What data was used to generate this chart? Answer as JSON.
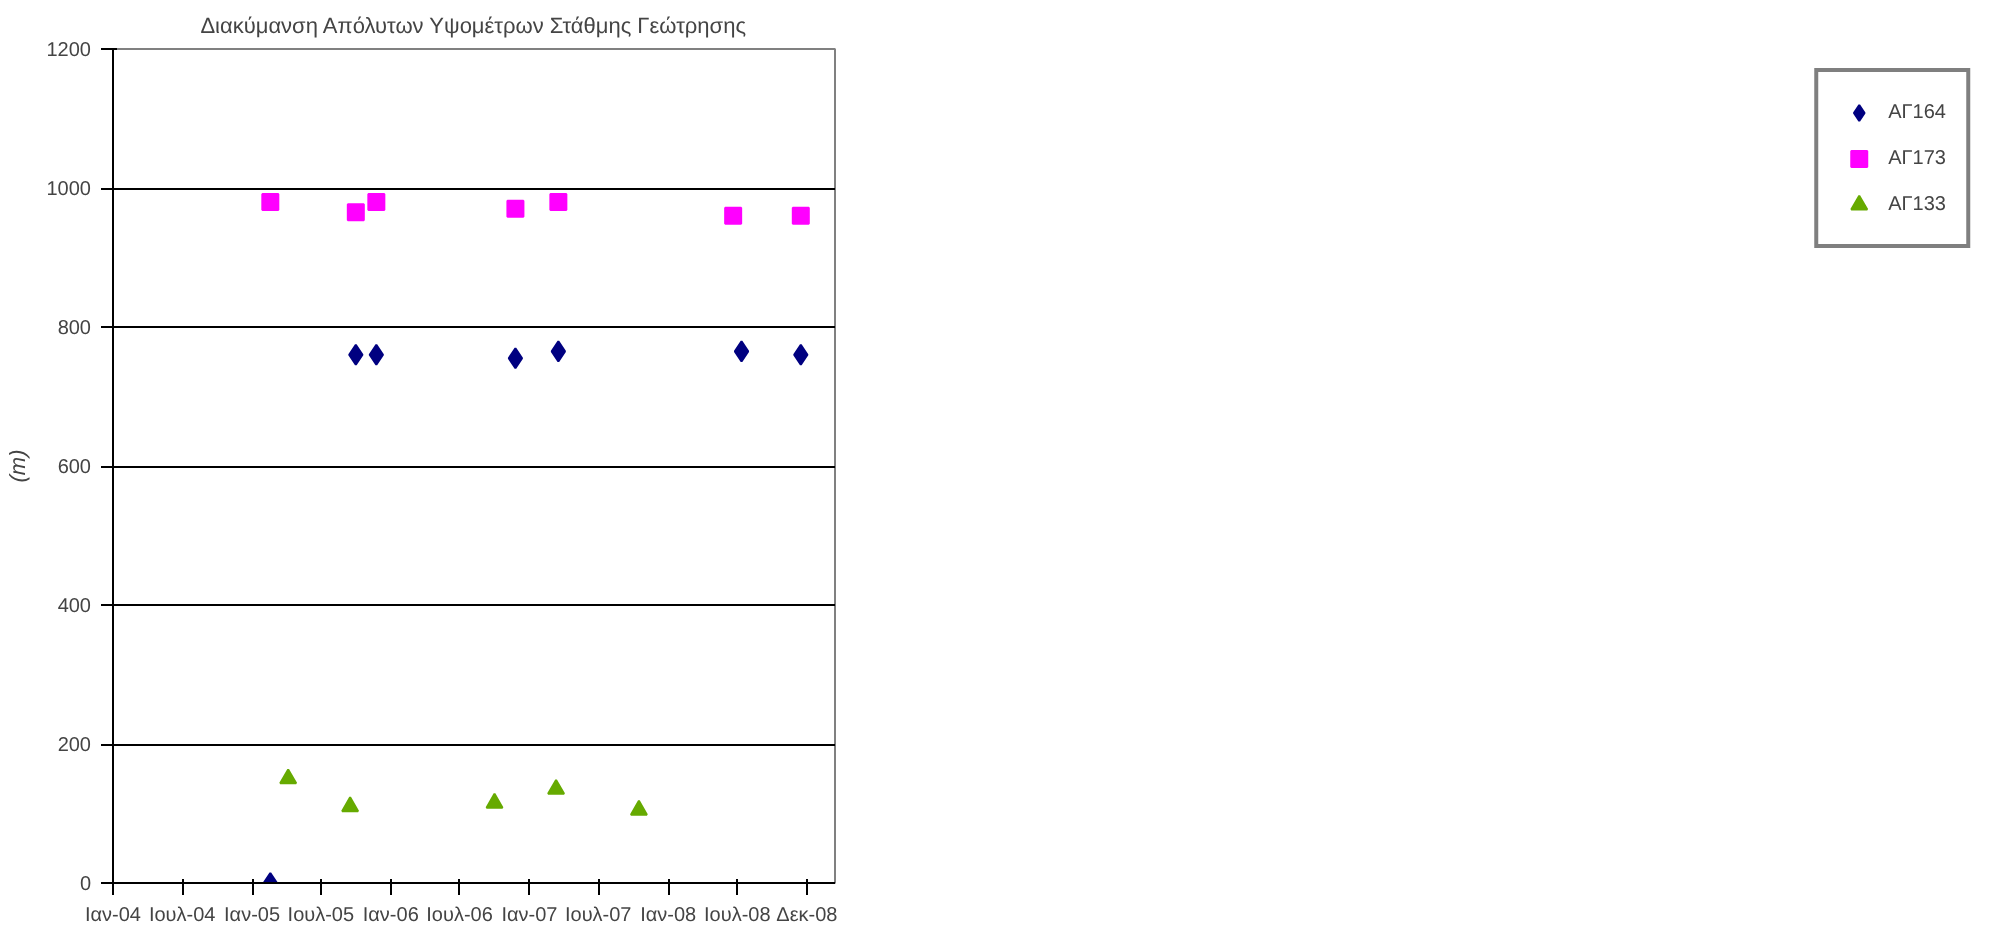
{
  "chart_data": {
    "type": "scatter",
    "title": "Διακύμανση Απόλυτων Υψομέτρων Στάθμης Γεώτρησης",
    "ylabel": "(m)",
    "xlim": [
      "2004-01-01",
      "2009-03-15"
    ],
    "ylim": [
      0,
      1200
    ],
    "yticks": [
      0,
      200,
      400,
      600,
      800,
      1000,
      1200
    ],
    "xticks": [
      {
        "value": "2004-01-01",
        "label": "Ιαν-04"
      },
      {
        "value": "2004-07-01",
        "label": "Ιουλ-04"
      },
      {
        "value": "2005-01-01",
        "label": "Ιαν-05"
      },
      {
        "value": "2005-07-01",
        "label": "Ιουλ-05"
      },
      {
        "value": "2006-01-01",
        "label": "Ιαν-06"
      },
      {
        "value": "2006-07-01",
        "label": "Ιουλ-06"
      },
      {
        "value": "2007-01-01",
        "label": "Ιαν-07"
      },
      {
        "value": "2007-07-01",
        "label": "Ιουλ-07"
      },
      {
        "value": "2008-01-01",
        "label": "Ιαν-08"
      },
      {
        "value": "2008-07-01",
        "label": "Ιουλ-08"
      },
      {
        "value": "2008-12-31",
        "label": "Δεκ-08"
      }
    ],
    "grid": "y",
    "legend": "right",
    "series": [
      {
        "name": "ΑΓ164",
        "color": "#000080",
        "marker": "diamond",
        "x": [
          "2005-02-18",
          "2005-10-01",
          "2005-11-24",
          "2006-11-25",
          "2007-03-18",
          "2008-07-12",
          "2008-12-15"
        ],
        "values": [
          0,
          760,
          760,
          755,
          765,
          765,
          760
        ]
      },
      {
        "name": "ΑΓ173",
        "color": "#ff00ff",
        "marker": "square",
        "x": [
          "2005-02-18",
          "2005-10-01",
          "2005-11-24",
          "2006-11-25",
          "2007-03-18",
          "2008-06-20",
          "2008-12-15"
        ],
        "values": [
          980,
          965,
          980,
          970,
          980,
          960,
          960
        ]
      },
      {
        "name": "ΑΓ133",
        "color": "#66aa00",
        "marker": "triangle",
        "x": [
          "2005-04-06",
          "2005-09-16",
          "2006-10-01",
          "2007-03-12",
          "2007-10-16"
        ],
        "values": [
          150,
          110,
          115,
          135,
          105
        ]
      }
    ]
  }
}
